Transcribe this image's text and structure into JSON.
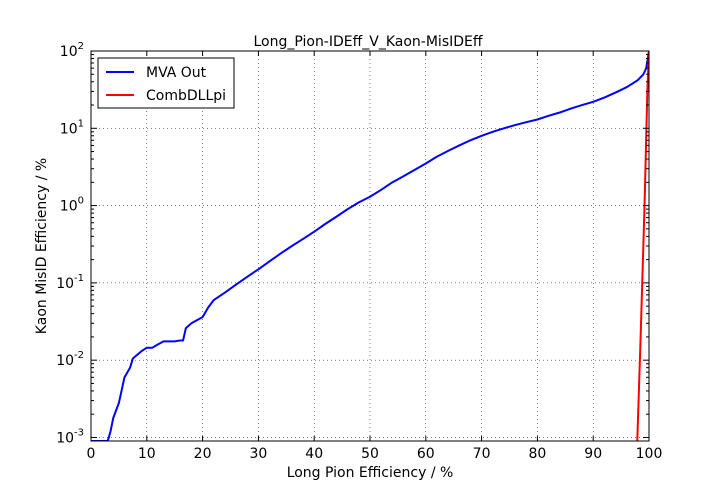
{
  "chart_data": {
    "type": "line",
    "title": "Long_Pion-IDEff_V_Kaon-MisIDEff",
    "xlabel": "Long Pion Efficiency / %",
    "ylabel": "Kaon MisID Efficiency / %",
    "xlim": [
      0,
      100
    ],
    "ylim": [
      0.0009,
      100
    ],
    "yscale": "log",
    "grid": true,
    "legend_position": "top-left",
    "x_ticks": [
      "0",
      "10",
      "20",
      "30",
      "40",
      "50",
      "60",
      "70",
      "80",
      "90",
      "100"
    ],
    "y_ticks": [
      {
        "value": 0.001,
        "base": "10",
        "exp": "-3"
      },
      {
        "value": 0.01,
        "base": "10",
        "exp": "-2"
      },
      {
        "value": 0.1,
        "base": "10",
        "exp": "-1"
      },
      {
        "value": 1,
        "base": "10",
        "exp": "0"
      },
      {
        "value": 10,
        "base": "10",
        "exp": "1"
      },
      {
        "value": 100,
        "base": "10",
        "exp": "2"
      }
    ],
    "series": [
      {
        "name": "MVA Out",
        "color": "#0000ff",
        "x": [
          0,
          3,
          3.5,
          4,
          5,
          6,
          7,
          7.5,
          9,
          10,
          11,
          12,
          13,
          14,
          15,
          16,
          16.5,
          17,
          18,
          19,
          20,
          21,
          22,
          24,
          26,
          28,
          30,
          32,
          34,
          36,
          38,
          40,
          42,
          44,
          46,
          48,
          50,
          52,
          54,
          56,
          58,
          60,
          62,
          64,
          66,
          68,
          70,
          72,
          74,
          76,
          78,
          80,
          82,
          84,
          86,
          88,
          90,
          92,
          94,
          96,
          98,
          99,
          99.5,
          100
        ],
        "y": [
          0.0009,
          0.0009,
          0.0012,
          0.0018,
          0.0028,
          0.006,
          0.008,
          0.0105,
          0.013,
          0.0145,
          0.0145,
          0.016,
          0.0175,
          0.0175,
          0.0175,
          0.018,
          0.018,
          0.026,
          0.03,
          0.033,
          0.036,
          0.048,
          0.06,
          0.075,
          0.095,
          0.12,
          0.15,
          0.19,
          0.24,
          0.3,
          0.37,
          0.46,
          0.58,
          0.72,
          0.9,
          1.1,
          1.3,
          1.6,
          2.0,
          2.4,
          2.9,
          3.5,
          4.3,
          5.1,
          6.0,
          7.0,
          8.0,
          9.0,
          10.0,
          11.0,
          12.0,
          13.0,
          14.5,
          16.0,
          18.0,
          20.0,
          22.0,
          25.0,
          29.0,
          34.0,
          42.0,
          50.0,
          60.0,
          100.0
        ]
      },
      {
        "name": "CombDLLpi",
        "color": "#ff0000",
        "x": [
          97.9,
          98.5,
          99.2,
          99.7,
          100
        ],
        "y": [
          0.0009,
          0.02,
          1.0,
          30.0,
          100.0
        ]
      }
    ]
  }
}
